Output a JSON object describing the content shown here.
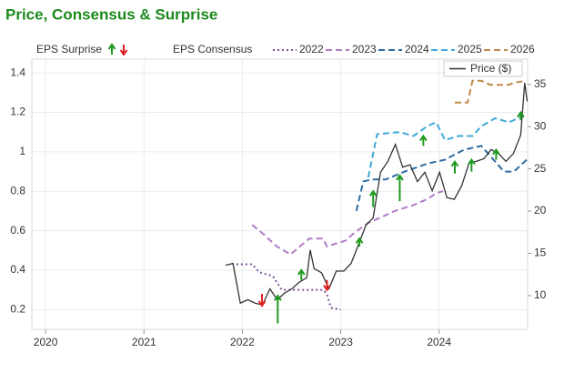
{
  "chart_data": {
    "type": "line",
    "title": "Price, Consensus & Surprise",
    "consensus_label": "EPS Consensus",
    "xlim": [
      2019.86,
      2024.9
    ],
    "xticks": [
      2020,
      2021,
      2022,
      2023,
      2024
    ],
    "ylim": [
      0.1,
      1.47
    ],
    "yticks": [
      0.2,
      0.4,
      0.6,
      0.8,
      1,
      1.2,
      1.4
    ],
    "y2lim": [
      6,
      38
    ],
    "y2ticks": [
      10,
      15,
      20,
      25,
      30,
      35
    ],
    "grid": true,
    "series": [
      {
        "name": "2022",
        "color": "#7b4f9e",
        "style": "dotted",
        "x": [
          2021.94,
          2022.1,
          2022.17,
          2022.31,
          2022.4,
          2022.82,
          2022.86,
          2022.9,
          2023.0
        ],
        "values": [
          0.43,
          0.43,
          0.39,
          0.37,
          0.3,
          0.3,
          0.28,
          0.21,
          0.2
        ]
      },
      {
        "name": "2023",
        "color": "#b07cc6",
        "style": "dashed",
        "x": [
          2022.1,
          2022.22,
          2022.35,
          2022.49,
          2022.68,
          2022.82,
          2022.86,
          2023.05,
          2023.14,
          2023.28,
          2023.42,
          2023.55,
          2023.74,
          2023.88,
          2023.97,
          2024.04
        ],
        "values": [
          0.63,
          0.58,
          0.52,
          0.48,
          0.56,
          0.56,
          0.52,
          0.55,
          0.59,
          0.64,
          0.67,
          0.7,
          0.73,
          0.76,
          0.79,
          0.8
        ]
      },
      {
        "name": "2024",
        "color": "#2e6da4",
        "style": "dashed",
        "x": [
          2023.16,
          2023.23,
          2023.32,
          2023.46,
          2023.65,
          2023.88,
          2024.06,
          2024.25,
          2024.43,
          2024.66,
          2024.76,
          2024.89
        ],
        "values": [
          0.7,
          0.85,
          0.86,
          0.86,
          0.9,
          0.94,
          0.96,
          1.01,
          1.03,
          0.9,
          0.9,
          0.96
        ]
      },
      {
        "name": "2025",
        "color": "#3fa9d8",
        "style": "dashed",
        "x": [
          2023.28,
          2023.37,
          2023.6,
          2023.74,
          2023.88,
          2023.97,
          2024.06,
          2024.2,
          2024.34,
          2024.43,
          2024.57,
          2024.71,
          2024.85
        ],
        "values": [
          0.87,
          1.09,
          1.1,
          1.08,
          1.13,
          1.15,
          1.06,
          1.08,
          1.08,
          1.13,
          1.17,
          1.15,
          1.18
        ]
      },
      {
        "name": "2026",
        "color": "#c08a4a",
        "style": "dashed",
        "x": [
          2024.16,
          2024.29,
          2024.34,
          2024.43,
          2024.52,
          2024.71,
          2024.76,
          2024.88
        ],
        "values": [
          1.25,
          1.25,
          1.36,
          1.36,
          1.34,
          1.34,
          1.35,
          1.36
        ]
      },
      {
        "name": "Price ($)",
        "color": "#333333",
        "style": "solid",
        "axis": "y2",
        "x": [
          2021.83,
          2021.905,
          2021.98,
          2022.055,
          2022.13,
          2022.205,
          2022.28,
          2022.355,
          2022.43,
          2022.505,
          2022.58,
          2022.655,
          2022.69,
          2022.73,
          2022.805,
          2022.88,
          2022.955,
          2023.03,
          2023.105,
          2023.18,
          2023.255,
          2023.33,
          2023.405,
          2023.48,
          2023.555,
          2023.63,
          2023.705,
          2023.78,
          2023.855,
          2023.93,
          2024.005,
          2024.08,
          2024.155,
          2024.23,
          2024.305,
          2024.38,
          2024.455,
          2024.53,
          2024.605,
          2024.68,
          2024.755,
          2024.83,
          2024.87,
          2024.895
        ],
        "values": [
          13.6,
          13.8,
          9.1,
          9.5,
          9.1,
          8.9,
          10.8,
          9.5,
          10.3,
          10.8,
          11.6,
          12.1,
          15.4,
          13.2,
          12.7,
          10.8,
          12.9,
          12.9,
          13.8,
          16.0,
          18.3,
          19.2,
          24.6,
          25.9,
          27.9,
          25.2,
          25.5,
          23.5,
          24.6,
          22.4,
          24.6,
          21.6,
          21.4,
          23.0,
          25.7,
          25.9,
          26.2,
          27.3,
          26.8,
          25.9,
          26.8,
          29.0,
          35.2,
          33.0
        ]
      }
    ],
    "surprises": {
      "label": "EPS Surprise",
      "up_color": "#1e9a1e",
      "down_color": "#e02020",
      "x": [
        2022.2,
        2022.36,
        2022.6,
        2022.86,
        2023.19,
        2023.33,
        2023.6,
        2023.84,
        2024.16,
        2024.33,
        2024.58,
        2024.83
      ],
      "estimate": [
        0.28,
        0.13,
        0.35,
        0.35,
        0.52,
        0.72,
        0.75,
        1.03,
        0.89,
        0.9,
        0.96,
        1.16
      ],
      "actual": [
        0.22,
        0.27,
        0.4,
        0.3,
        0.56,
        0.8,
        0.88,
        1.08,
        0.95,
        0.96,
        1.01,
        1.2
      ]
    }
  }
}
